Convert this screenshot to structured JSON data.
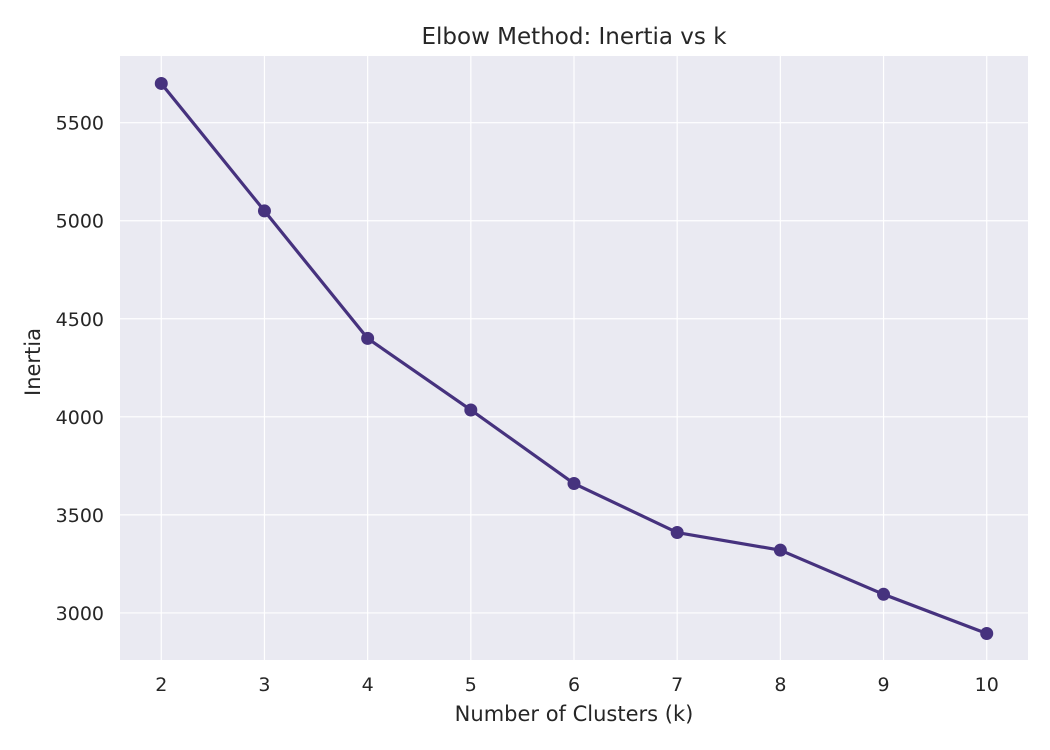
{
  "chart_data": {
    "type": "line",
    "title": "Elbow Method: Inertia vs k",
    "xlabel": "Number of Clusters (k)",
    "ylabel": "Inertia",
    "x": [
      2,
      3,
      4,
      5,
      6,
      7,
      8,
      9,
      10
    ],
    "xticks": [
      2,
      3,
      4,
      5,
      6,
      7,
      8,
      9,
      10
    ],
    "yticks": [
      3000,
      3500,
      4000,
      4500,
      5000,
      5500
    ],
    "xlim": [
      1.6,
      10.4
    ],
    "ylim": [
      2760,
      5840
    ],
    "series": [
      {
        "values": [
          5700,
          5050,
          4400,
          4035,
          3660,
          3410,
          3320,
          3095,
          2895
        ],
        "color": "#46327e",
        "marker": "circle"
      }
    ],
    "grid": true,
    "legend": "none",
    "background": "#eaeaf2",
    "grid_color": "#ffffff"
  }
}
